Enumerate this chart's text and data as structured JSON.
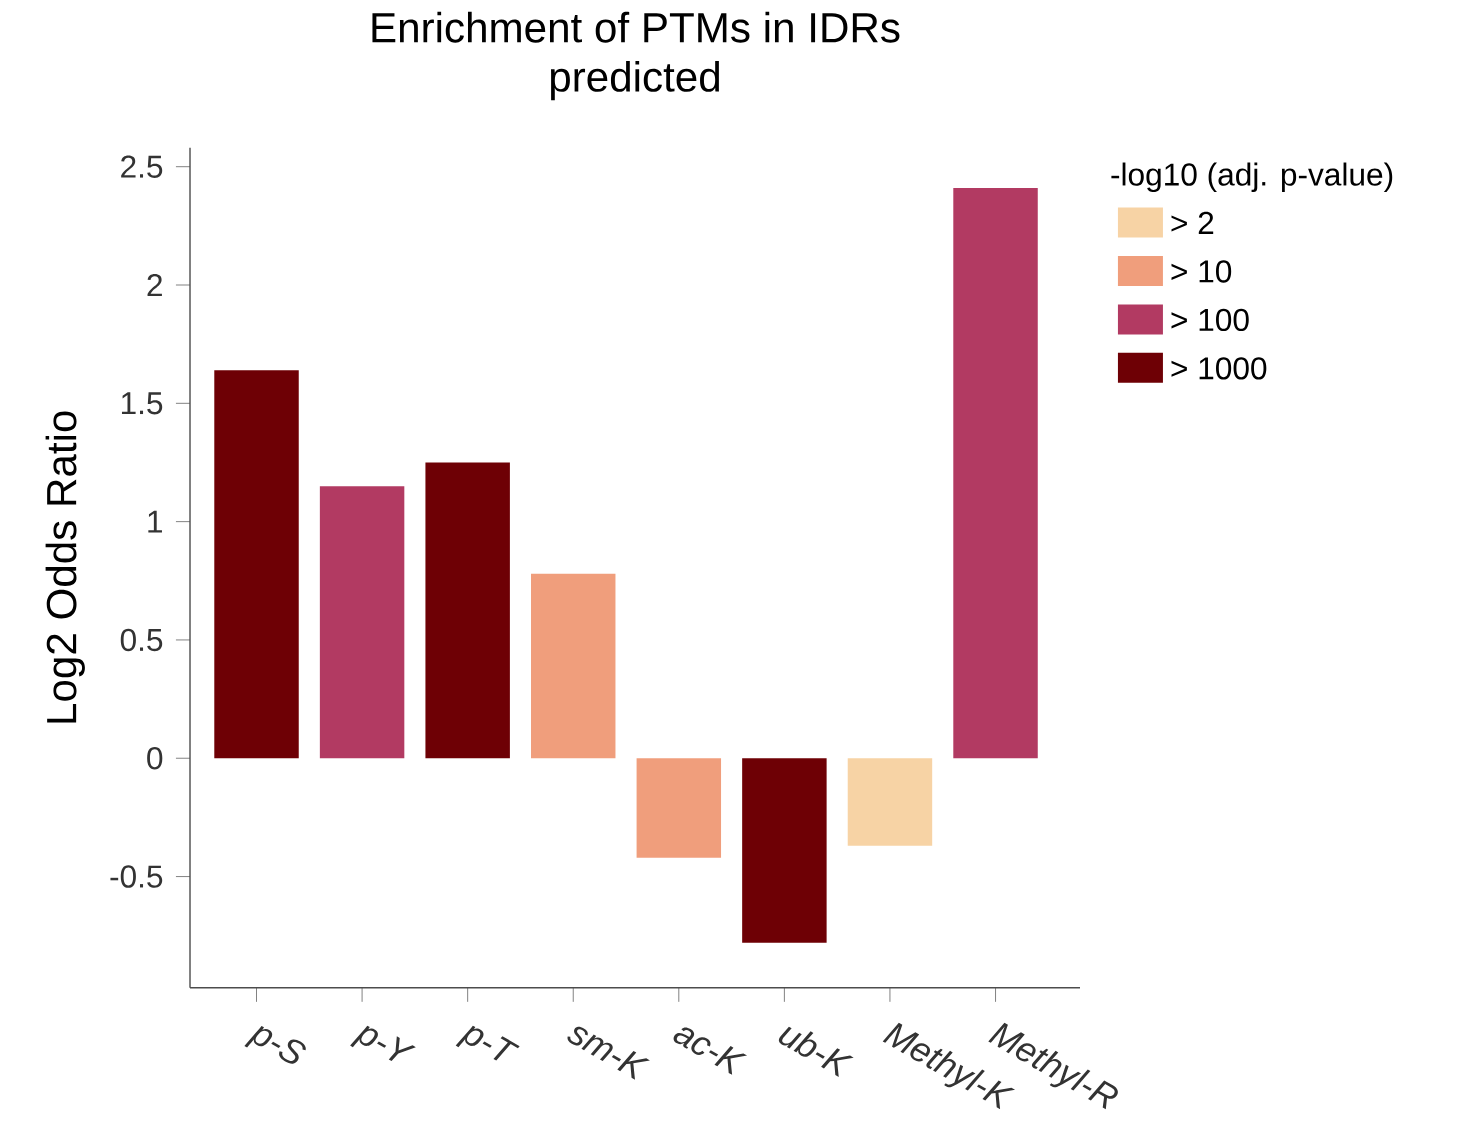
{
  "chart_data": {
    "type": "bar",
    "title": "Enrichment of PTMs in IDRs",
    "subtitle": "predicted",
    "ylabel": "Log2 Odds Ratio",
    "legend_title": "-log10 (adj. p-value)",
    "categories": [
      "p-S",
      "p-Y",
      "p-T",
      "sm-K",
      "ac-K",
      "ub-K",
      "Methyl-K",
      "Methyl-R"
    ],
    "series": [
      {
        "name": "> 2",
        "color": "#f7d3a5",
        "values": [
          null,
          null,
          null,
          null,
          null,
          null,
          -0.37,
          null
        ]
      },
      {
        "name": "> 10",
        "color": "#f09e7c",
        "values": [
          null,
          null,
          null,
          0.78,
          -0.42,
          null,
          null,
          null
        ]
      },
      {
        "name": "> 100",
        "color": "#b23a62",
        "values": [
          null,
          1.15,
          null,
          null,
          null,
          null,
          null,
          2.41
        ]
      },
      {
        "name": "> 1000",
        "color": "#6e0005",
        "values": [
          1.64,
          null,
          1.25,
          null,
          null,
          -0.78,
          null,
          null
        ]
      }
    ],
    "ylim": [
      -0.97,
      2.58
    ],
    "yticks": [
      -0.5,
      0,
      0.5,
      1,
      1.5,
      2,
      2.5
    ],
    "grid": false,
    "legend": "top right"
  }
}
